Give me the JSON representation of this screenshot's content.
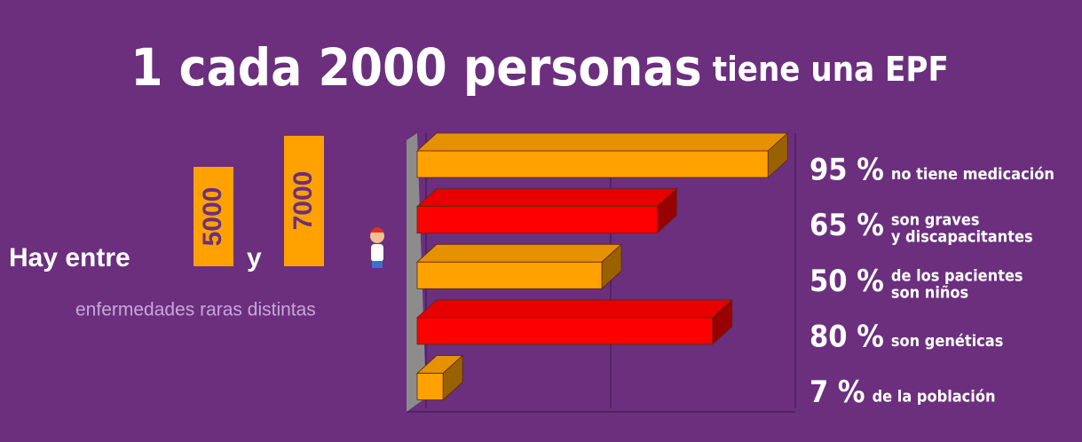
{
  "chart_data": {
    "type": "bar",
    "orientation": "horizontal",
    "title": "1 cada 2000 personas",
    "subtitle": "tiene una EPF",
    "values": [
      95,
      65,
      50,
      80,
      7
    ],
    "value_labels": [
      "95 %",
      "65 %",
      "50 %",
      "80 %",
      "7 %"
    ],
    "descriptions": [
      [
        "no tiene medicación"
      ],
      [
        "son graves",
        "y discapacitantes"
      ],
      [
        "de los pacientes",
        "son niños"
      ],
      [
        "son genéticas"
      ],
      [
        "de la población"
      ]
    ],
    "colors": [
      "#ffa200",
      "#ff0000",
      "#ffa200",
      "#ff0000",
      "#ffa200"
    ],
    "xlim": [
      0,
      100
    ],
    "xticks": [
      0,
      50,
      100
    ],
    "grid": true
  },
  "info": {
    "prefix": "Hay entre",
    "low": 5000,
    "conjunction": "y",
    "high": 7000,
    "caption": "enfermedades raras distintas"
  }
}
